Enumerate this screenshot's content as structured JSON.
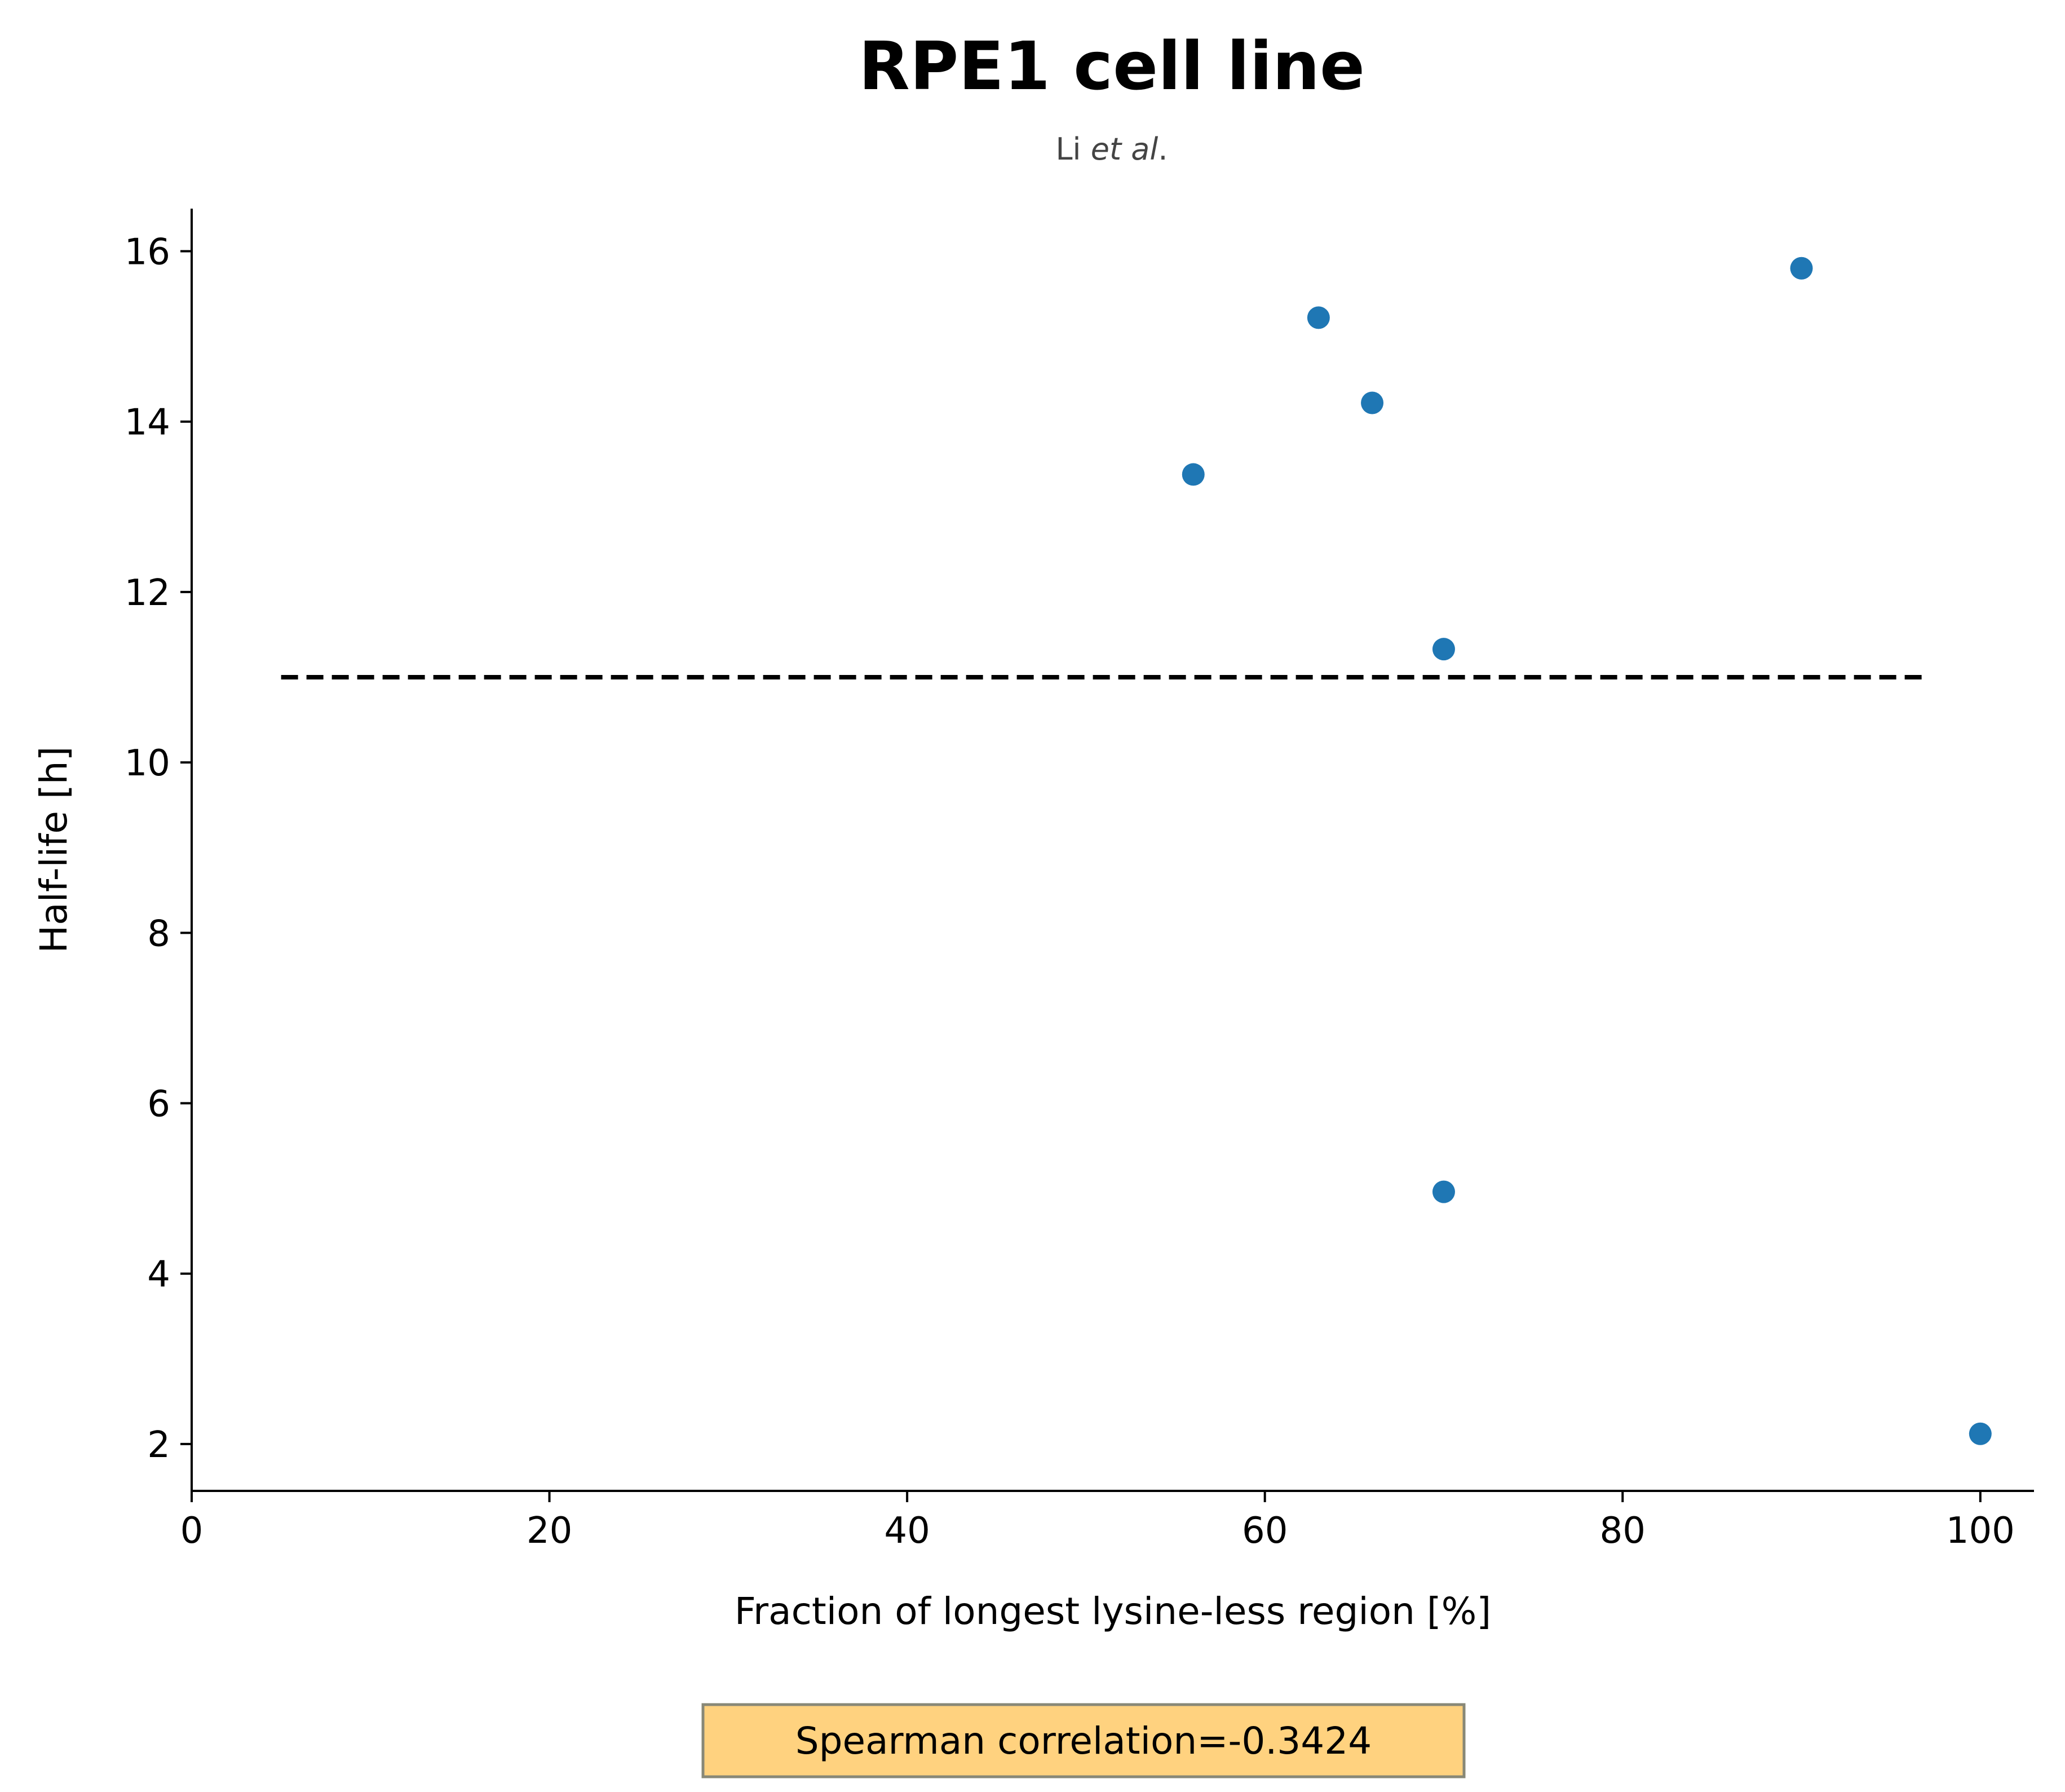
{
  "chart_data": {
    "type": "scatter",
    "title": "RPE1 cell line",
    "subtitle": {
      "prefix": "Li ",
      "italic": "et al",
      "suffix": "."
    },
    "xlabel": "Fraction of longest lysine-less region [%]",
    "ylabel": "Half-life [h]",
    "xlim": [
      0,
      103
    ],
    "ylim": [
      1.45,
      16.5
    ],
    "xticks": [
      0,
      20,
      40,
      60,
      80,
      100
    ],
    "yticks": [
      2,
      4,
      6,
      8,
      10,
      12,
      14,
      16
    ],
    "grid": false,
    "point_color": "#1f77b4",
    "points": [
      {
        "x": 56,
        "y": 13.38
      },
      {
        "x": 63,
        "y": 15.22
      },
      {
        "x": 66,
        "y": 14.22
      },
      {
        "x": 70,
        "y": 11.33
      },
      {
        "x": 70,
        "y": 4.96
      },
      {
        "x": 90,
        "y": 15.8
      },
      {
        "x": 100,
        "y": 2.12
      }
    ],
    "reference_line": {
      "style": "dashed",
      "y": 11.0,
      "x_start": 5,
      "x_end": 97,
      "color": "#000000"
    },
    "annotation": {
      "text": "Spearman correlation=-0.3424",
      "background": "#ffd27f",
      "border": "#888877"
    }
  }
}
